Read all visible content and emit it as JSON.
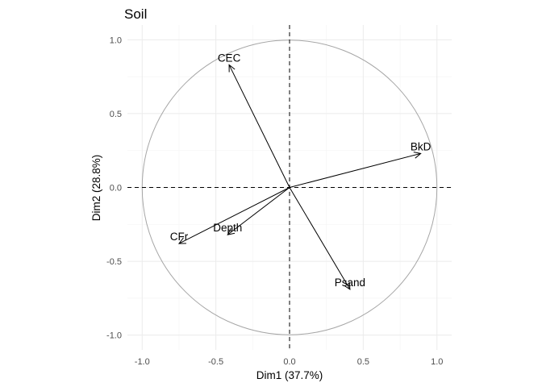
{
  "chart_data": {
    "type": "scatter",
    "subtype": "pca-variable-correlation-circle",
    "title": "Soil",
    "xlabel": "Dim1 (37.7%)",
    "ylabel": "Dim2 (28.8%)",
    "xlim": [
      -1.1,
      1.1
    ],
    "ylim": [
      -1.1,
      1.1
    ],
    "xticks": [
      -1.0,
      -0.5,
      0.0,
      0.5,
      1.0
    ],
    "xtick_labels": [
      "-1.0",
      "-0.5",
      "0.0",
      "0.5",
      "1.0"
    ],
    "yticks": [
      -1.0,
      -0.5,
      0.0,
      0.5,
      1.0
    ],
    "ytick_labels": [
      "-1.0",
      "-0.5",
      "0.0",
      "0.5",
      "1.0"
    ],
    "grid": true,
    "unit_circle": true,
    "reference_lines": {
      "x": 0,
      "y": 0,
      "style": "dashed"
    },
    "variables": [
      {
        "name": "CEC",
        "x": -0.41,
        "y": 0.83
      },
      {
        "name": "BkD",
        "x": 0.89,
        "y": 0.23
      },
      {
        "name": "Depth",
        "x": -0.42,
        "y": -0.32
      },
      {
        "name": "CFr",
        "x": -0.75,
        "y": -0.38
      },
      {
        "name": "Psand",
        "x": 0.41,
        "y": -0.69
      }
    ]
  }
}
